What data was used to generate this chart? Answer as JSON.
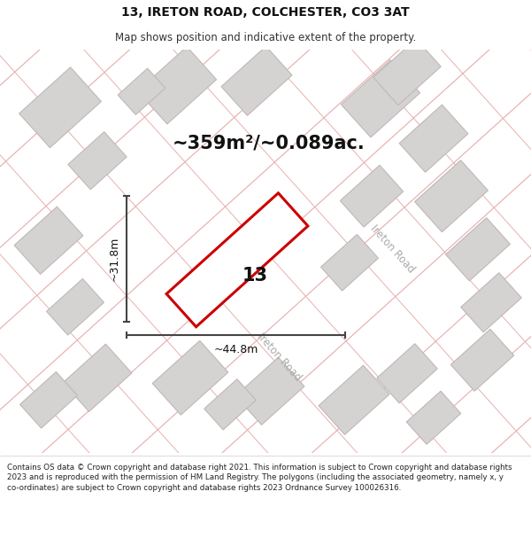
{
  "title": "13, IRETON ROAD, COLCHESTER, CO3 3AT",
  "subtitle": "Map shows position and indicative extent of the property.",
  "area_text": "~359m²/~0.089ac.",
  "label_13": "13",
  "width_label": "~44.8m",
  "height_label": "~31.8m",
  "road_label_right": "Ireton Road",
  "road_label_bottom": "Ireton Road",
  "footer": "Contains OS data © Crown copyright and database right 2021. This information is subject to Crown copyright and database rights 2023 and is reproduced with the permission of HM Land Registry. The polygons (including the associated geometry, namely x, y co-ordinates) are subject to Crown copyright and database rights 2023 Ordnance Survey 100026316.",
  "map_bg": "#f5f3f3",
  "building_fc": "#d5d2d2",
  "building_ec": "#c0b8b8",
  "road_line_color": "#e8b0b0",
  "plot_fc": "#ffffff",
  "plot_ec": "#cc0000",
  "dim_color": "#444444",
  "text_color": "#111111",
  "road_text_color": "#aaaaaa",
  "footer_color": "#222222",
  "title_color": "#111111",
  "subtitle_color": "#333333"
}
